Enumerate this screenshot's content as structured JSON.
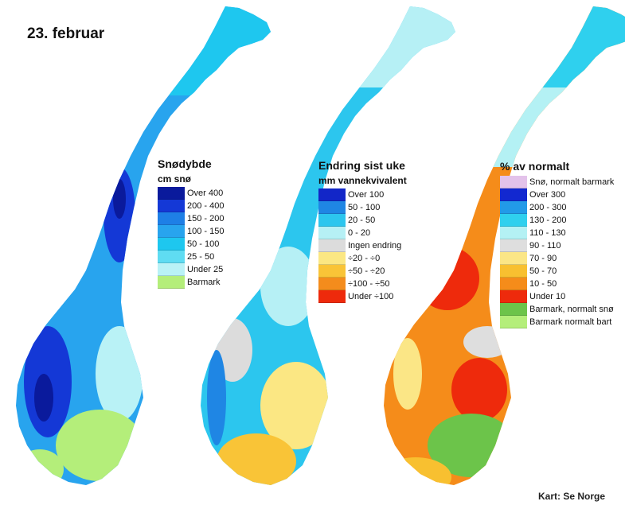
{
  "title": "23. februar",
  "credit": "Kart: Se Norge",
  "legends": [
    {
      "heading": "Snødybde",
      "subheading": "cm snø",
      "items": [
        {
          "label": "Over 400",
          "color": "#0a1a9c"
        },
        {
          "label": "200 - 400",
          "color": "#1438d6"
        },
        {
          "label": "150 - 200",
          "color": "#1e7fe6"
        },
        {
          "label": "100 - 150",
          "color": "#28a4ee"
        },
        {
          "label": "50 - 100",
          "color": "#1ec7ef"
        },
        {
          "label": "25 - 50",
          "color": "#5fdcf2"
        },
        {
          "label": "Under 25",
          "color": "#b9f2f6"
        },
        {
          "label": "Barmark",
          "color": "#b4ee7a"
        }
      ]
    },
    {
      "heading": "Endring sist uke",
      "subheading": "mm vannekvivalent",
      "items": [
        {
          "label": "Over 100",
          "color": "#1226c8"
        },
        {
          "label": "50 - 100",
          "color": "#1f86e4"
        },
        {
          "label": "20 - 50",
          "color": "#2cc6ee"
        },
        {
          "label": "0 - 20",
          "color": "#b6f0f5"
        },
        {
          "label": "Ingen endring",
          "color": "#dcdcdc"
        },
        {
          "label": "÷20 - ÷0",
          "color": "#fbe783"
        },
        {
          "label": "÷50 - ÷20",
          "color": "#f9c437"
        },
        {
          "label": "÷100 - ÷50",
          "color": "#f48c1c"
        },
        {
          "label": "Under ÷100",
          "color": "#ee2a0c"
        }
      ]
    },
    {
      "heading": "% av normalt",
      "subheading": "",
      "items": [
        {
          "label": "Snø, normalt barmark",
          "color": "#e3c2ea"
        },
        {
          "label": "Over 300",
          "color": "#1228d0"
        },
        {
          "label": "200 - 300",
          "color": "#229ae8"
        },
        {
          "label": "130 - 200",
          "color": "#2fd0ee"
        },
        {
          "label": "110 - 130",
          "color": "#b4f1f4"
        },
        {
          "label": "90 - 110",
          "color": "#dedede"
        },
        {
          "label": "70 - 90",
          "color": "#fbe686"
        },
        {
          "label": "50 - 70",
          "color": "#f8c030"
        },
        {
          "label": "10 - 50",
          "color": "#f58c1a"
        },
        {
          "label": "Under 10",
          "color": "#ee2a0c"
        },
        {
          "label": "Barmark, normalt snø",
          "color": "#6cc44a"
        },
        {
          "label": "Barmark normalt bart",
          "color": "#b4ee7a"
        }
      ]
    }
  ]
}
